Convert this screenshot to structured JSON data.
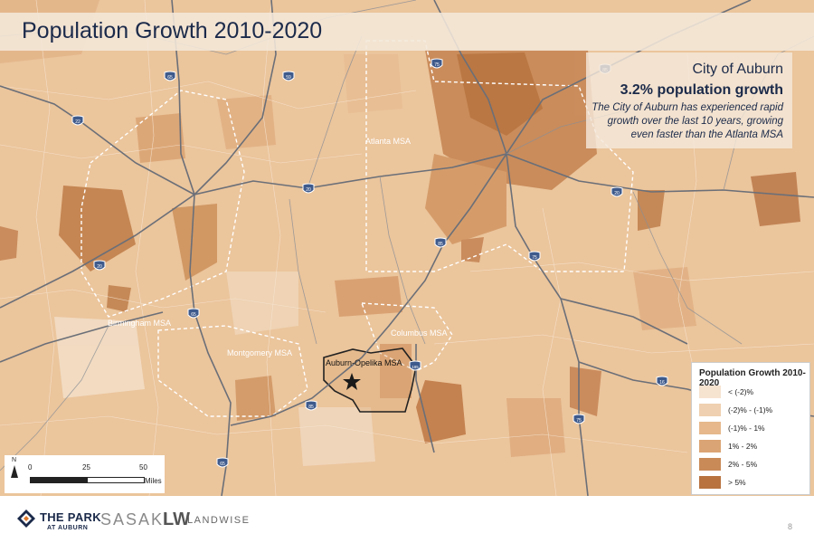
{
  "title": "Population Growth 2010-2020",
  "callout": {
    "city": "City of Auburn",
    "stat": "3.2% population growth",
    "description": "The City of Auburn has experienced rapid growth over the last 10 years, growing even faster than the Atlanta MSA"
  },
  "msa_labels": {
    "atlanta": "Atlanta MSA",
    "birmingham": "Birmingham MSA",
    "montgomery": "Montgomery MSA",
    "columbus": "Columbus MSA",
    "auburn": "Auburn-Opelika MSA"
  },
  "highways": [
    "65",
    "59",
    "75",
    "85",
    "20",
    "22",
    "20",
    "20",
    "85",
    "75",
    "65",
    "85",
    "185",
    "16",
    "75",
    "65"
  ],
  "legend": {
    "title": "Population Growth 2010-2020",
    "items": [
      {
        "label": "< (-2)%",
        "color": "#f6e3d0"
      },
      {
        "label": "(-2)% - (-1)%",
        "color": "#efd0b0"
      },
      {
        "label": "(-1)% - 1%",
        "color": "#e6b88c"
      },
      {
        "label": "1% - 2%",
        "color": "#dba474"
      },
      {
        "label": "2% - 5%",
        "color": "#c98a58"
      },
      {
        "label": "> 5%",
        "color": "#b8733f"
      }
    ]
  },
  "scale_bar": {
    "north": "N",
    "ticks": [
      "0",
      "25",
      "50"
    ],
    "units": "Miles"
  },
  "footer": {
    "park_name": "THE PARK",
    "park_sub": "AT AUBURN",
    "sasaki": "SASAKI",
    "lw": "LW",
    "landwise": "LANDWISE",
    "page_number": "8"
  }
}
